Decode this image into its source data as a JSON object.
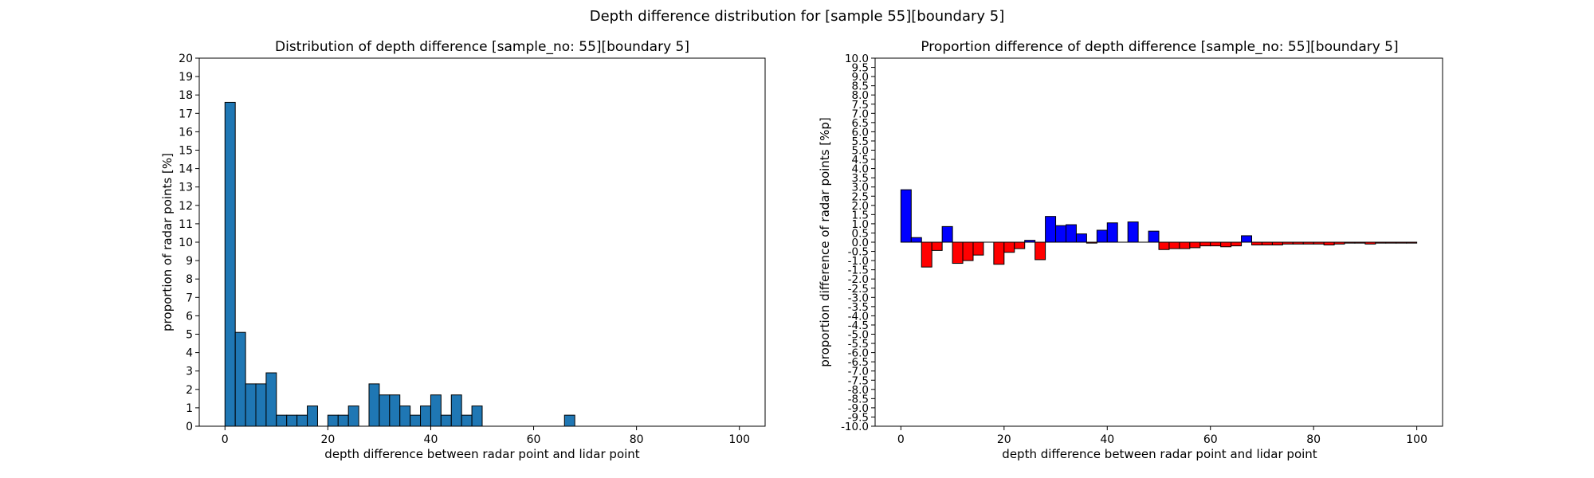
{
  "suptitle": "Depth difference distribution for [sample 55][boundary 5]",
  "chart_data": [
    {
      "type": "bar",
      "title": "Distribution of depth difference [sample_no: 55][boundary 5]",
      "xlabel": "depth difference between radar point and lidar point",
      "ylabel": "proportion of radar points [%]",
      "xlim": [
        -5,
        105
      ],
      "ylim": [
        0,
        20
      ],
      "xticks": [
        0,
        20,
        40,
        60,
        80,
        100
      ],
      "yticks": [
        0,
        1,
        2,
        3,
        4,
        5,
        6,
        7,
        8,
        9,
        10,
        11,
        12,
        13,
        14,
        15,
        16,
        17,
        18,
        19,
        20
      ],
      "bin_width": 2,
      "bin_starts": [
        0,
        2,
        4,
        6,
        8,
        10,
        12,
        14,
        16,
        18,
        20,
        22,
        24,
        26,
        28,
        30,
        32,
        34,
        36,
        38,
        40,
        42,
        44,
        46,
        48,
        50,
        52,
        54,
        56,
        58,
        60,
        62,
        64,
        66,
        68,
        70,
        72,
        74,
        76,
        78,
        80,
        82,
        84,
        86,
        88,
        90,
        92,
        94,
        96,
        98
      ],
      "values": [
        17.6,
        5.1,
        2.3,
        2.3,
        2.9,
        0.6,
        0.6,
        0.6,
        1.1,
        0,
        0.6,
        0.6,
        1.1,
        0,
        2.3,
        1.7,
        1.7,
        1.1,
        0.6,
        1.1,
        1.7,
        0.6,
        1.7,
        0.6,
        1.1,
        0,
        0,
        0,
        0,
        0,
        0,
        0,
        0,
        0.6,
        0,
        0,
        0,
        0,
        0,
        0,
        0,
        0,
        0,
        0,
        0,
        0,
        0,
        0,
        0,
        0
      ],
      "color": "#1f77b4"
    },
    {
      "type": "bar",
      "title": "Proportion difference of depth difference [sample_no: 55][boundary 5]",
      "xlabel": "depth difference between radar point and lidar point",
      "ylabel": "proportion difference of radar points [%p]",
      "xlim": [
        -5,
        105
      ],
      "ylim": [
        -10,
        10
      ],
      "xticks": [
        0,
        20,
        40,
        60,
        80,
        100
      ],
      "yticks": [
        "-10.0",
        "-9.5",
        "-9.0",
        "-8.5",
        "-8.0",
        "-7.5",
        "-7.0",
        "-6.5",
        "-6.0",
        "-5.5",
        "-5.0",
        "-4.5",
        "-4.0",
        "-3.5",
        "-3.0",
        "-2.5",
        "-2.0",
        "-1.5",
        "-1.0",
        "-0.5",
        "0.0",
        "0.5",
        "1.0",
        "1.5",
        "2.0",
        "2.5",
        "3.0",
        "3.5",
        "4.0",
        "4.5",
        "5.0",
        "5.5",
        "6.0",
        "6.5",
        "7.0",
        "7.5",
        "8.0",
        "8.5",
        "9.0",
        "9.5",
        "10.0"
      ],
      "bin_width": 2,
      "bin_starts": [
        0,
        2,
        4,
        6,
        8,
        10,
        12,
        14,
        16,
        18,
        20,
        22,
        24,
        26,
        28,
        30,
        32,
        34,
        36,
        38,
        40,
        42,
        44,
        46,
        48,
        50,
        52,
        54,
        56,
        58,
        60,
        62,
        64,
        66,
        68,
        70,
        72,
        74,
        76,
        78,
        80,
        82,
        84,
        86,
        88,
        90,
        92,
        94,
        96,
        98
      ],
      "values": [
        2.85,
        0.25,
        -1.35,
        -0.45,
        0.85,
        -1.15,
        -1.0,
        -0.7,
        0,
        -1.2,
        -0.55,
        -0.35,
        0.1,
        -0.95,
        1.4,
        0.9,
        0.95,
        0.45,
        -0.05,
        0.65,
        1.05,
        0,
        1.1,
        0,
        0.6,
        -0.4,
        -0.35,
        -0.35,
        -0.3,
        -0.2,
        -0.2,
        -0.25,
        -0.2,
        0.35,
        -0.15,
        -0.15,
        -0.15,
        -0.1,
        -0.1,
        -0.1,
        -0.1,
        -0.15,
        -0.1,
        -0.05,
        -0.05,
        -0.1,
        -0.05,
        -0.05,
        -0.05,
        -0.05
      ],
      "positive_color": "#0000ff",
      "negative_color": "#ff0000"
    }
  ]
}
